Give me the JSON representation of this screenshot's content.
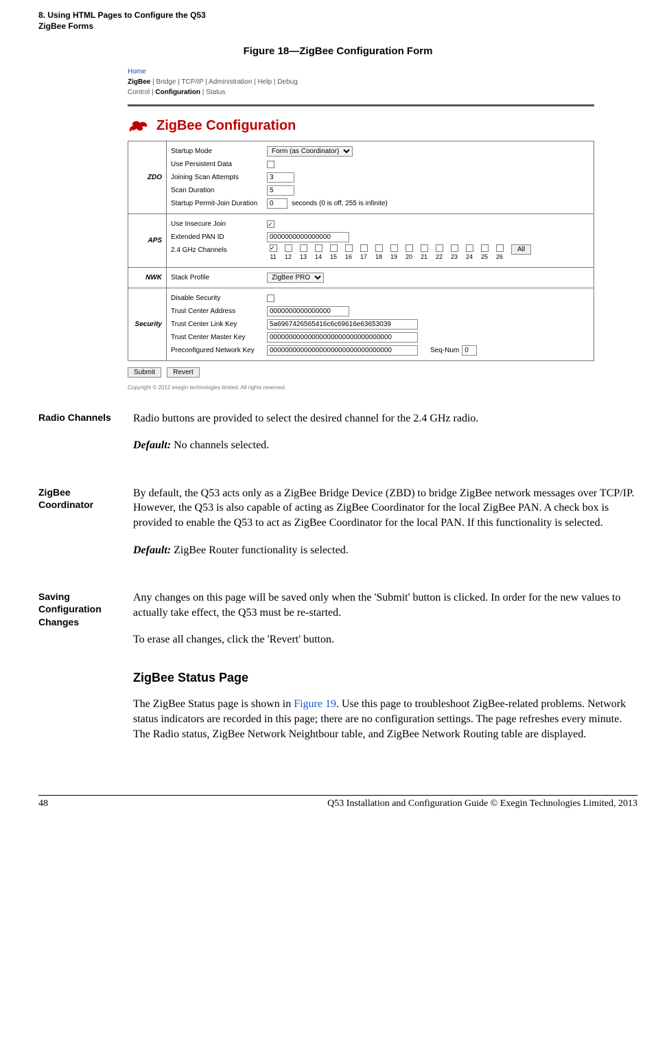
{
  "running_head": {
    "line1": "8. Using HTML Pages to Configure the Q53",
    "line2": "ZigBee Forms"
  },
  "figure_title": "Figure 18—ZigBee Configuration Form",
  "crumbs": {
    "home": "Home",
    "row1": [
      "ZigBee",
      "Bridge",
      "TCP/IP",
      "Administration",
      "Help",
      "Debug"
    ],
    "row1_bold_index": 0,
    "row2": [
      "Control",
      "Configuration",
      "Status"
    ],
    "row2_bold_index": 1
  },
  "panel_title": "ZigBee Configuration",
  "zdo": {
    "name": "ZDO",
    "startup_mode_label": "Startup Mode",
    "startup_mode_value": "Form (as Coordinator)",
    "use_persistent_label": "Use Persistent Data",
    "use_persistent_checked": false,
    "scan_attempts_label": "Joining Scan Attempts",
    "scan_attempts_value": "3",
    "scan_duration_label": "Scan Duration",
    "scan_duration_value": "5",
    "permit_join_label": "Startup Permit-Join Duration",
    "permit_join_value": "0",
    "permit_join_hint": "seconds (0 is off, 255 is infinite)"
  },
  "aps": {
    "name": "APS",
    "insecure_label": "Use Insecure Join",
    "insecure_checked": true,
    "epid_label": "Extended PAN ID",
    "epid_value": "0000000000000000",
    "channels_label": "2.4 GHz Channels",
    "channel_numbers": [
      "11",
      "12",
      "13",
      "14",
      "15",
      "16",
      "17",
      "18",
      "19",
      "20",
      "21",
      "22",
      "23",
      "24",
      "25",
      "26"
    ],
    "channel_checked": [
      true,
      false,
      false,
      false,
      false,
      false,
      false,
      false,
      false,
      false,
      false,
      false,
      false,
      false,
      false,
      false
    ],
    "all_button": "All"
  },
  "nwk": {
    "name": "NWK",
    "stack_profile_label": "Stack Profile",
    "stack_profile_value": "ZigBee PRO"
  },
  "security": {
    "name": "Security",
    "disable_label": "Disable Security",
    "disable_checked": false,
    "tc_addr_label": "Trust Center Address",
    "tc_addr_value": "0000000000000000",
    "tc_link_label": "Trust Center Link Key",
    "tc_link_value": "5a6967426565416c6c69616e63653039",
    "tc_master_label": "Trust Center Master Key",
    "tc_master_value": "00000000000000000000000000000000",
    "precfg_label": "Preconfigured Network Key",
    "precfg_value": "00000000000000000000000000000000",
    "seqnum_label": "Seq-Num",
    "seqnum_value": "0"
  },
  "buttons": {
    "submit": "Submit",
    "revert": "Revert"
  },
  "figure_copyright": "Copyright © 2012 exegin technologies limited. All rights reserved.",
  "sections": {
    "radio": {
      "heading": "Radio Channels",
      "p1": "Radio buttons are provided to select the desired channel for the 2.4 GHz radio.",
      "default_label": "Default:",
      "default_text": " No channels selected."
    },
    "coord": {
      "heading": "ZigBee Coordinator",
      "p1": "By default, the Q53 acts only as a ZigBee Bridge Device (ZBD) to bridge ZigBee network messages over TCP/IP. However, the Q53 is also capable of acting as ZigBee Coordinator for the local ZigBee PAN. A check box is provided to enable the Q53 to act as ZigBee Coordinator for the local PAN. If this functionality is selected.",
      "default_label": "Default:",
      "default_text": " ZigBee Router functionality is selected."
    },
    "saving": {
      "heading": "Saving Configuration Changes",
      "p1": "Any changes on this page will be saved only when the 'Submit' button is clicked. In order for the new values to actually take effect, the Q53 must be re-started.",
      "p2": "To erase all changes, click the 'Revert' button."
    },
    "status": {
      "heading": "ZigBee Status Page",
      "p1a": "The ZigBee Status page is shown in ",
      "figref": "Figure 19",
      "p1b": ". Use this page to troubleshoot ZigBee-related problems. Network status indicators are recorded in this page; there are no configuration settings. The page refreshes every minute. The Radio status, ZigBee Network Neightbour table, and ZigBee Network Routing table are displayed."
    }
  },
  "footer": {
    "page": "48",
    "text": "Q53 Installation and Configuration Guide  © Exegin Technologies Limited, 2013"
  },
  "colors": {
    "link_blue": "#1558c4",
    "brand_red": "#bf0000"
  }
}
